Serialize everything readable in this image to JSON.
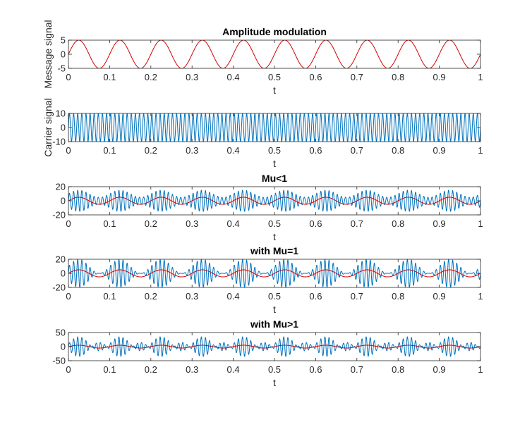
{
  "figure": {
    "background": "#ffffff",
    "axes_color": "#262626",
    "colors": {
      "blue": "#0072BD",
      "red": "#D40000"
    }
  },
  "chart_data": [
    {
      "type": "line",
      "title": "Amplitude modulation",
      "xlabel": "t",
      "ylabel": "Message signal",
      "xlim": [
        0,
        1
      ],
      "ylim": [
        -5,
        5
      ],
      "xticks": [
        "0",
        "0.1",
        "0.2",
        "0.3",
        "0.4",
        "0.5",
        "0.6",
        "0.7",
        "0.8",
        "0.9",
        "1"
      ],
      "yticks": [
        "-5",
        "0",
        "5"
      ],
      "yticks_values": [
        -5,
        0,
        5
      ],
      "series": [
        {
          "color": "#D40000",
          "function": "sin",
          "amplitude": 5,
          "frequency": 10
        }
      ]
    },
    {
      "type": "line",
      "title": "",
      "xlabel": "t",
      "ylabel": "Carrier signal",
      "xlim": [
        0,
        1
      ],
      "ylim": [
        -10,
        10
      ],
      "xticks": [
        "0",
        "0.1",
        "0.2",
        "0.3",
        "0.4",
        "0.5",
        "0.6",
        "0.7",
        "0.8",
        "0.9",
        "1"
      ],
      "yticks": [
        "-10",
        "0",
        "10"
      ],
      "yticks_values": [
        -10,
        0,
        10
      ],
      "series": [
        {
          "color": "#0072BD",
          "function": "sin",
          "amplitude": 10,
          "frequency": 100
        }
      ]
    },
    {
      "type": "line",
      "title": "Mu<1",
      "xlabel": "t",
      "ylabel": "",
      "xlim": [
        0,
        1
      ],
      "ylim": [
        -20,
        20
      ],
      "xticks": [
        "0",
        "0.1",
        "0.2",
        "0.3",
        "0.4",
        "0.5",
        "0.6",
        "0.7",
        "0.8",
        "0.9",
        "1"
      ],
      "yticks": [
        "-20",
        "0",
        "20"
      ],
      "yticks_values": [
        -20,
        0,
        20
      ],
      "series": [
        {
          "color": "#0072BD",
          "function": "am",
          "carrier_amplitude": 10,
          "carrier_frequency": 100,
          "message_amplitude": 5,
          "message_frequency": 10,
          "modulation_index": 0.5
        },
        {
          "color": "#D40000",
          "function": "sin",
          "amplitude": 5,
          "frequency": 10
        }
      ]
    },
    {
      "type": "line",
      "title": "with Mu=1",
      "xlabel": "t",
      "ylabel": "",
      "xlim": [
        0,
        1
      ],
      "ylim": [
        -20,
        20
      ],
      "xticks": [
        "0",
        "0.1",
        "0.2",
        "0.3",
        "0.4",
        "0.5",
        "0.6",
        "0.7",
        "0.8",
        "0.9",
        "1"
      ],
      "yticks": [
        "-20",
        "0",
        "20"
      ],
      "yticks_values": [
        -20,
        0,
        20
      ],
      "series": [
        {
          "color": "#0072BD",
          "function": "am",
          "carrier_amplitude": 10,
          "carrier_frequency": 100,
          "message_amplitude": 5,
          "message_frequency": 10,
          "modulation_index": 1
        },
        {
          "color": "#D40000",
          "function": "sin",
          "amplitude": 5,
          "frequency": 10
        }
      ]
    },
    {
      "type": "line",
      "title": "with Mu>1",
      "xlabel": "t",
      "ylabel": "",
      "xlim": [
        0,
        1
      ],
      "ylim": [
        -50,
        50
      ],
      "xticks": [
        "0",
        "0.1",
        "0.2",
        "0.3",
        "0.4",
        "0.5",
        "0.6",
        "0.7",
        "0.8",
        "0.9",
        "1"
      ],
      "yticks": [
        "-50",
        "0",
        "50"
      ],
      "yticks_values": [
        -50,
        0,
        50
      ],
      "series": [
        {
          "color": "#0072BD",
          "function": "am",
          "carrier_amplitude": 10,
          "carrier_frequency": 100,
          "message_amplitude": 5,
          "message_frequency": 10,
          "modulation_index": 2.5
        },
        {
          "color": "#D40000",
          "function": "sin",
          "amplitude": 5,
          "frequency": 10
        }
      ]
    }
  ]
}
